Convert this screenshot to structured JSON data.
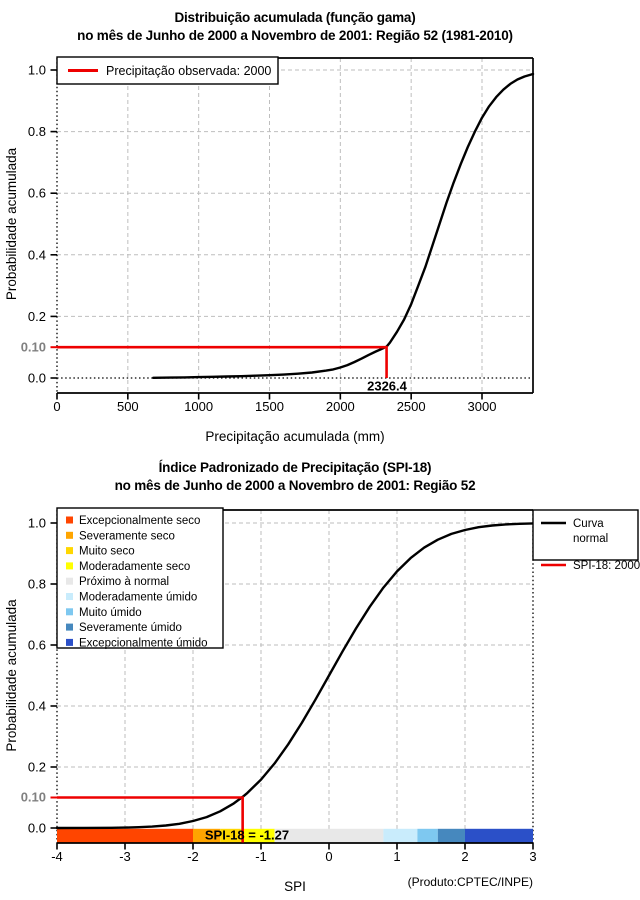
{
  "colors": {
    "red_line": "#EE0000",
    "curve": "#000000",
    "grid": "#BEBEBE",
    "special_tick_label": "#808080",
    "background": "#FFFFFF",
    "legend_box_border": "#000000"
  },
  "chart_data": [
    {
      "type": "line",
      "title": "Distribuição acumulada (função gama)",
      "subtitle": "no mês de Junho de 2000 a Novembro de 2001: Região 52 (1981-2010)",
      "xlabel": "Precipitação acumulada (mm)",
      "ylabel": "Probabilidade acumulada",
      "xlim": [
        0,
        3360
      ],
      "ylim": [
        0,
        1
      ],
      "xticks": [
        0,
        500,
        1000,
        1500,
        2000,
        2500,
        3000
      ],
      "yticks": [
        {
          "v": 0.0,
          "label": "0.0"
        },
        {
          "v": 0.2,
          "label": "0.2"
        },
        {
          "v": 0.4,
          "label": "0.4"
        },
        {
          "v": 0.6,
          "label": "0.6"
        },
        {
          "v": 0.8,
          "label": "0.8"
        },
        {
          "v": 1.0,
          "label": "1.0"
        }
      ],
      "special_ytick": {
        "v": 0.1,
        "label": "0.10"
      },
      "grid": true,
      "legend": {
        "position": "top-left",
        "entries": [
          {
            "label": "Precipitação observada: 2000",
            "color": "#EE0000"
          }
        ]
      },
      "marker": {
        "x": 2326.4,
        "p": 0.1,
        "label": "2326.4"
      },
      "series": [
        {
          "name": "Distribuição acumulada (função gama)",
          "color": "#000000",
          "points": [
            [
              680,
              0.0005
            ],
            [
              800,
              0.0012
            ],
            [
              900,
              0.002
            ],
            [
              1000,
              0.003
            ],
            [
              1100,
              0.004
            ],
            [
              1200,
              0.005
            ],
            [
              1300,
              0.006
            ],
            [
              1400,
              0.0075
            ],
            [
              1500,
              0.009
            ],
            [
              1600,
              0.011
            ],
            [
              1700,
              0.014
            ],
            [
              1800,
              0.018
            ],
            [
              1900,
              0.024
            ],
            [
              1950,
              0.028
            ],
            [
              2000,
              0.034
            ],
            [
              2050,
              0.042
            ],
            [
              2100,
              0.052
            ],
            [
              2150,
              0.063
            ],
            [
              2200,
              0.075
            ],
            [
              2250,
              0.086
            ],
            [
              2300,
              0.096
            ],
            [
              2326.4,
              0.102
            ],
            [
              2350,
              0.115
            ],
            [
              2400,
              0.15
            ],
            [
              2450,
              0.19
            ],
            [
              2500,
              0.24
            ],
            [
              2550,
              0.3
            ],
            [
              2600,
              0.36
            ],
            [
              2650,
              0.43
            ],
            [
              2700,
              0.5
            ],
            [
              2750,
              0.57
            ],
            [
              2800,
              0.635
            ],
            [
              2850,
              0.695
            ],
            [
              2900,
              0.75
            ],
            [
              2950,
              0.8
            ],
            [
              3000,
              0.845
            ],
            [
              3050,
              0.882
            ],
            [
              3100,
              0.912
            ],
            [
              3150,
              0.936
            ],
            [
              3200,
              0.955
            ],
            [
              3250,
              0.969
            ],
            [
              3300,
              0.979
            ],
            [
              3360,
              0.987
            ]
          ]
        }
      ]
    },
    {
      "type": "line",
      "title": "Índice Padronizado de Precipitação (SPI-18)",
      "subtitle": "no mês de Junho de 2000 a Novembro de 2001: Região 52",
      "xlabel": "SPI",
      "ylabel": "Probabilidade acumulada",
      "footer": "(Produto:CPTEC/INPE)",
      "xlim": [
        -4,
        3
      ],
      "ylim": [
        0,
        1
      ],
      "xticks": [
        -4,
        -3,
        -2,
        -1,
        0,
        1,
        2,
        3
      ],
      "yticks": [
        {
          "v": 0.0,
          "label": "0.0"
        },
        {
          "v": 0.2,
          "label": "0.2"
        },
        {
          "v": 0.4,
          "label": "0.4"
        },
        {
          "v": 0.6,
          "label": "0.6"
        },
        {
          "v": 0.8,
          "label": "0.8"
        },
        {
          "v": 1.0,
          "label": "1.0"
        }
      ],
      "special_ytick": {
        "v": 0.1,
        "label": "0.10"
      },
      "grid": true,
      "categories": [
        {
          "label": "Excepcionalmente seco",
          "color": "#FF4500",
          "from": -4.0,
          "to": -2.0
        },
        {
          "label": "Severamente seco",
          "color": "#FFA500",
          "from": -2.0,
          "to": -1.6
        },
        {
          "label": "Muito seco",
          "color": "#FFD700",
          "from": -1.6,
          "to": -1.3
        },
        {
          "label": "Moderadamente seco",
          "color": "#FFFF00",
          "from": -1.3,
          "to": -0.8
        },
        {
          "label": "Próximo à normal",
          "color": "#E8E8E8",
          "from": -0.8,
          "to": 0.8
        },
        {
          "label": "Moderadamente úmido",
          "color": "#C9ECFC",
          "from": 0.8,
          "to": 1.3
        },
        {
          "label": "Muito úmido",
          "color": "#7EC8F0",
          "from": 1.3,
          "to": 1.6
        },
        {
          "label": "Severamente úmido",
          "color": "#4688BE",
          "from": 1.6,
          "to": 2.0
        },
        {
          "label": "Excepcionalmente úmido",
          "color": "#2B50C8",
          "from": 2.0,
          "to": 3.0
        }
      ],
      "legend": {
        "position": "top-right",
        "entries": [
          {
            "label": "Curva normal",
            "lines": [
              "Curva",
              "normal"
            ],
            "color": "#000000"
          },
          {
            "label": "SPI-18: 2000",
            "lines": [
              "SPI-18: 2000"
            ],
            "color": "#EE0000"
          }
        ]
      },
      "marker": {
        "x": -1.27,
        "p": 0.1,
        "label": "SPI-18 = -1.27"
      },
      "series": [
        {
          "name": "Curva normal",
          "color": "#000000",
          "points": [
            [
              -4,
              0.0
            ],
            [
              -3.6,
              0.0002
            ],
            [
              -3.2,
              0.0007
            ],
            [
              -3,
              0.0013
            ],
            [
              -2.8,
              0.0026
            ],
            [
              -2.6,
              0.0047
            ],
            [
              -2.4,
              0.0082
            ],
            [
              -2.2,
              0.0139
            ],
            [
              -2,
              0.0228
            ],
            [
              -1.8,
              0.0359
            ],
            [
              -1.6,
              0.0548
            ],
            [
              -1.4,
              0.0808
            ],
            [
              -1.27,
              0.102
            ],
            [
              -1.2,
              0.1151
            ],
            [
              -1,
              0.1587
            ],
            [
              -0.8,
              0.2119
            ],
            [
              -0.6,
              0.2743
            ],
            [
              -0.4,
              0.3446
            ],
            [
              -0.2,
              0.4207
            ],
            [
              0,
              0.5
            ],
            [
              0.2,
              0.5793
            ],
            [
              0.4,
              0.6554
            ],
            [
              0.6,
              0.7257
            ],
            [
              0.8,
              0.7881
            ],
            [
              1,
              0.8413
            ],
            [
              1.2,
              0.8849
            ],
            [
              1.4,
              0.9192
            ],
            [
              1.6,
              0.9452
            ],
            [
              1.8,
              0.9641
            ],
            [
              2,
              0.9772
            ],
            [
              2.2,
              0.9861
            ],
            [
              2.4,
              0.9918
            ],
            [
              2.6,
              0.9953
            ],
            [
              2.8,
              0.9974
            ],
            [
              3,
              0.9987
            ]
          ]
        }
      ]
    }
  ]
}
